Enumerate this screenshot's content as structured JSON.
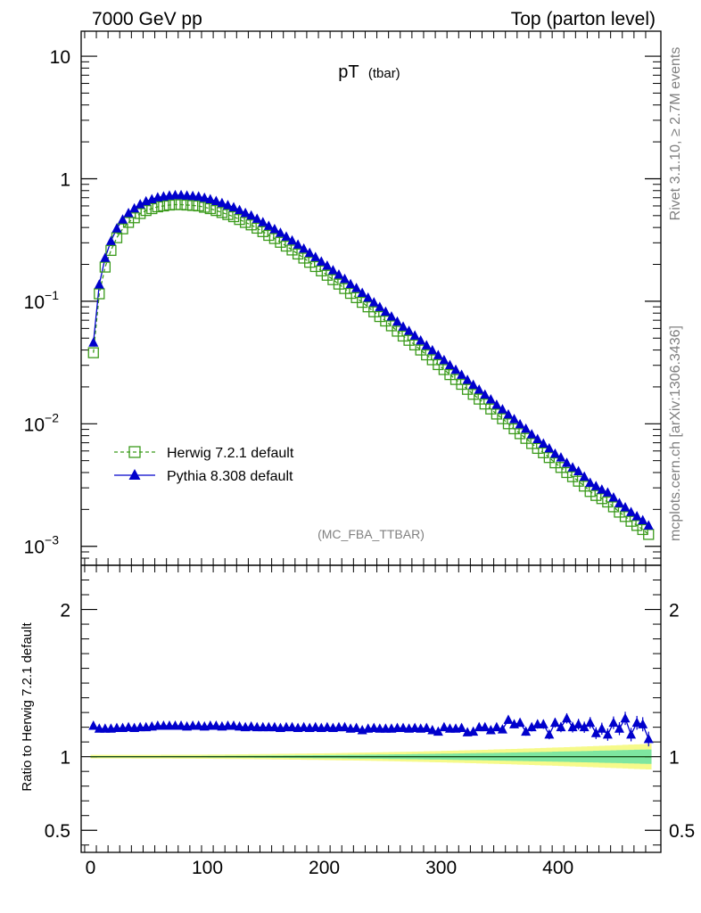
{
  "header": {
    "left": "7000 GeV pp",
    "right": "Top (parton level)"
  },
  "side_labels": {
    "rivet": "Rivet 3.1.10, ≥ 2.7M events",
    "source": "mcplots.cern.ch [arXiv:1306.3436]"
  },
  "colors": {
    "herwig": "#3a9a1a",
    "pythia": "#0000cc",
    "band_inner": "#7ee6a0",
    "band_outer": "#f6fa8a"
  },
  "chart_data": [
    {
      "type": "line",
      "title": "pT",
      "title_sub": "(tbar)",
      "analysis": "(MC_FBA_TTBAR)",
      "yscale": "log",
      "ylim": [
        0.0007,
        16
      ],
      "xlim": [
        -8,
        488
      ],
      "ytick_labels": [
        {
          "value": 10,
          "base": "10",
          "exp": ""
        },
        {
          "value": 1,
          "base": "1",
          "exp": ""
        },
        {
          "value": 0.1,
          "base": "10",
          "exp": "−1"
        },
        {
          "value": 0.01,
          "base": "10",
          "exp": "−2"
        },
        {
          "value": 0.001,
          "base": "10",
          "exp": "−3"
        }
      ],
      "x": [
        2.5,
        7.5,
        12.5,
        17.5,
        22.5,
        27.5,
        32.5,
        37.5,
        42.5,
        47.5,
        52.5,
        57.5,
        62.5,
        67.5,
        72.5,
        77.5,
        82.5,
        87.5,
        92.5,
        97.5,
        102.5,
        107.5,
        112.5,
        117.5,
        122.5,
        127.5,
        132.5,
        137.5,
        142.5,
        147.5,
        152.5,
        157.5,
        162.5,
        167.5,
        172.5,
        177.5,
        182.5,
        187.5,
        192.5,
        197.5,
        202.5,
        207.5,
        212.5,
        217.5,
        222.5,
        227.5,
        232.5,
        237.5,
        242.5,
        247.5,
        252.5,
        257.5,
        262.5,
        267.5,
        272.5,
        277.5,
        282.5,
        287.5,
        292.5,
        297.5,
        302.5,
        307.5,
        312.5,
        317.5,
        322.5,
        327.5,
        332.5,
        337.5,
        342.5,
        347.5,
        352.5,
        357.5,
        362.5,
        367.5,
        372.5,
        377.5,
        382.5,
        387.5,
        392.5,
        397.5,
        402.5,
        407.5,
        412.5,
        417.5,
        422.5,
        427.5,
        432.5,
        437.5,
        442.5,
        447.5,
        452.5,
        457.5,
        462.5,
        467.5,
        472.5,
        477.5
      ],
      "series": [
        {
          "name": "Herwig 7.2.1 default",
          "marker": "open-square",
          "values": [
            0.038,
            0.115,
            0.19,
            0.26,
            0.33,
            0.39,
            0.44,
            0.48,
            0.52,
            0.55,
            0.57,
            0.59,
            0.6,
            0.61,
            0.615,
            0.615,
            0.61,
            0.605,
            0.6,
            0.585,
            0.57,
            0.55,
            0.53,
            0.51,
            0.49,
            0.465,
            0.44,
            0.42,
            0.395,
            0.37,
            0.345,
            0.325,
            0.303,
            0.282,
            0.262,
            0.243,
            0.225,
            0.208,
            0.192,
            0.177,
            0.163,
            0.15,
            0.138,
            0.127,
            0.116,
            0.107,
            0.098,
            0.09,
            0.082,
            0.075,
            0.069,
            0.063,
            0.057,
            0.052,
            0.048,
            0.044,
            0.04,
            0.0365,
            0.0333,
            0.0304,
            0.0277,
            0.0252,
            0.023,
            0.021,
            0.0191,
            0.0174,
            0.0159,
            0.0145,
            0.0132,
            0.012,
            0.011,
            0.01,
            0.0091,
            0.0083,
            0.0076,
            0.0069,
            0.0063,
            0.0058,
            0.0053,
            0.0048,
            0.0044,
            0.004,
            0.0037,
            0.0034,
            0.0031,
            0.0028,
            0.0026,
            0.00245,
            0.0023,
            0.0021,
            0.0019,
            0.00175,
            0.0016,
            0.00148,
            0.00137,
            0.00125
          ]
        },
        {
          "name": "Pythia 8.308 default",
          "marker": "filled-triangle",
          "values": [
            0.046,
            0.137,
            0.226,
            0.31,
            0.393,
            0.464,
            0.524,
            0.572,
            0.619,
            0.655,
            0.68,
            0.705,
            0.716,
            0.728,
            0.734,
            0.734,
            0.728,
            0.722,
            0.716,
            0.698,
            0.68,
            0.657,
            0.633,
            0.609,
            0.585,
            0.555,
            0.525,
            0.501,
            0.471,
            0.442,
            0.412,
            0.388,
            0.362,
            0.337,
            0.313,
            0.29,
            0.269,
            0.248,
            0.229,
            0.211,
            0.195,
            0.179,
            0.165,
            0.152,
            0.138,
            0.128,
            0.117,
            0.107,
            0.098,
            0.0896,
            0.0822,
            0.0751,
            0.0681,
            0.0621,
            0.0573,
            0.0525,
            0.0478,
            0.0436,
            0.0398,
            0.0363,
            0.0331,
            0.0301,
            0.0276,
            0.0251,
            0.0228,
            0.0208,
            0.019,
            0.0173,
            0.0158,
            0.0143,
            0.0131,
            0.0119,
            0.0109,
            0.0099,
            0.0091,
            0.0082,
            0.0075,
            0.0069,
            0.0063,
            0.0057,
            0.0053,
            0.0048,
            0.0044,
            0.0041,
            0.0037,
            0.0033,
            0.0031,
            0.0029,
            0.00275,
            0.0025,
            0.00225,
            0.00208,
            0.0019,
            0.00176,
            0.00163,
            0.00148
          ]
        }
      ]
    },
    {
      "type": "line",
      "ylabel": "Ratio to Herwig 7.2.1 default",
      "ylim": [
        0.35,
        2.3
      ],
      "xlim": [
        -8,
        488
      ],
      "yticks": [
        0.5,
        1,
        2
      ],
      "ytick_labels": [
        "0.5",
        "1",
        "2"
      ],
      "xticks": [
        0,
        100,
        200,
        300,
        400
      ],
      "xtick_labels": [
        "0",
        "100",
        "200",
        "300",
        "400"
      ],
      "reference": 1,
      "series": [
        {
          "name": "Pythia 8.308 default",
          "values": [
            1.21,
            1.19,
            1.19,
            1.19,
            1.195,
            1.195,
            1.2,
            1.195,
            1.2,
            1.2,
            1.205,
            1.21,
            1.21,
            1.21,
            1.21,
            1.21,
            1.205,
            1.21,
            1.21,
            1.205,
            1.21,
            1.21,
            1.205,
            1.21,
            1.21,
            1.205,
            1.2,
            1.205,
            1.2,
            1.2,
            1.2,
            1.2,
            1.195,
            1.2,
            1.2,
            1.195,
            1.2,
            1.195,
            1.2,
            1.195,
            1.2,
            1.195,
            1.2,
            1.2,
            1.19,
            1.195,
            1.18,
            1.19,
            1.195,
            1.19,
            1.19,
            1.19,
            1.195,
            1.195,
            1.19,
            1.195,
            1.19,
            1.195,
            1.18,
            1.17,
            1.2,
            1.19,
            1.19,
            1.195,
            1.165,
            1.17,
            1.2,
            1.2,
            1.18,
            1.2,
            1.185,
            1.25,
            1.22,
            1.23,
            1.17,
            1.2,
            1.22,
            1.22,
            1.15,
            1.23,
            1.2,
            1.26,
            1.2,
            1.22,
            1.2,
            1.23,
            1.16,
            1.19,
            1.15,
            1.23,
            1.19,
            1.26,
            1.15,
            1.23,
            1.22,
            1.12
          ],
          "errors": [
            0.01,
            0.01,
            0.01,
            0.01,
            0.01,
            0.01,
            0.01,
            0.01,
            0.01,
            0.01,
            0.01,
            0.01,
            0.01,
            0.01,
            0.01,
            0.01,
            0.01,
            0.01,
            0.01,
            0.01,
            0.01,
            0.01,
            0.01,
            0.01,
            0.01,
            0.01,
            0.01,
            0.01,
            0.01,
            0.01,
            0.01,
            0.01,
            0.01,
            0.01,
            0.01,
            0.01,
            0.01,
            0.01,
            0.01,
            0.01,
            0.01,
            0.01,
            0.01,
            0.01,
            0.01,
            0.01,
            0.01,
            0.01,
            0.01,
            0.01,
            0.012,
            0.012,
            0.012,
            0.013,
            0.013,
            0.014,
            0.014,
            0.015,
            0.015,
            0.016,
            0.016,
            0.017,
            0.018,
            0.018,
            0.019,
            0.02,
            0.02,
            0.021,
            0.022,
            0.023,
            0.024,
            0.025,
            0.026,
            0.027,
            0.028,
            0.029,
            0.03,
            0.031,
            0.032,
            0.033,
            0.034,
            0.035,
            0.036,
            0.037,
            0.038,
            0.039,
            0.04,
            0.041,
            0.042,
            0.043,
            0.044,
            0.045,
            0.046,
            0.047,
            0.048,
            0.05
          ]
        }
      ]
    }
  ]
}
